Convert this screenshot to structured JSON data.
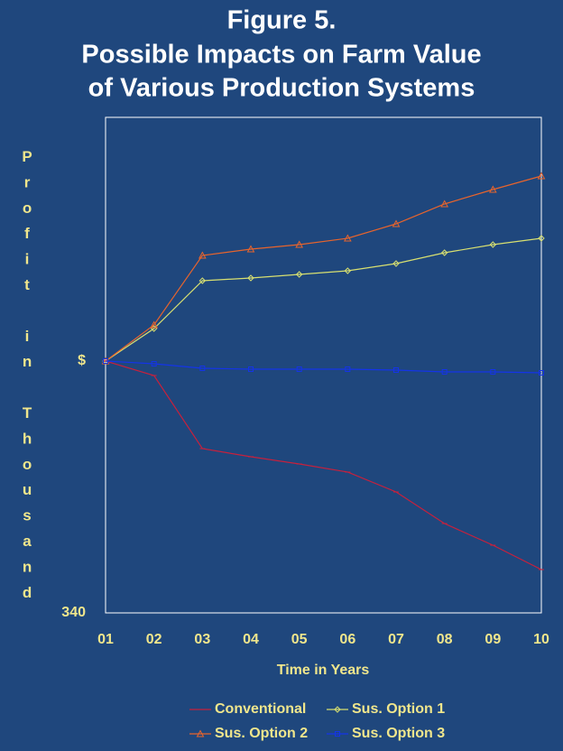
{
  "chart_data": {
    "type": "line",
    "title": [
      "Figure 5.",
      "Possible Impacts on Farm Value",
      "of Various Production Systems"
    ],
    "x_label": "Time in Years",
    "y_label": "Profit in Thousand",
    "categories": [
      "01",
      "02",
      "03",
      "04",
      "05",
      "06",
      "07",
      "08",
      "09",
      "10"
    ],
    "ylim": [
      340,
      889
    ],
    "yticks": [
      340,
      {
        "value": 619,
        "label": "$"
      }
    ],
    "series": [
      {
        "name": "Conventional",
        "color": "#c8203c",
        "marker": "dash",
        "values": [
          619,
          603,
          522,
          513,
          505,
          496,
          474,
          439,
          415,
          388
        ]
      },
      {
        "name": "Sus. Option 1",
        "color": "#d8e070",
        "marker": "diamond",
        "values": [
          619,
          655,
          708,
          711,
          715,
          719,
          727,
          739,
          748,
          755
        ]
      },
      {
        "name": "Sus. Option 2",
        "color": "#e8642c",
        "marker": "triangle",
        "values": [
          619,
          659,
          736,
          743,
          748,
          755,
          771,
          793,
          809,
          824
        ]
      },
      {
        "name": "Sus. Option 3",
        "color": "#1434e8",
        "marker": "square",
        "values": [
          619,
          616,
          611,
          610,
          610,
          610,
          609,
          607,
          607,
          606
        ]
      }
    ]
  }
}
